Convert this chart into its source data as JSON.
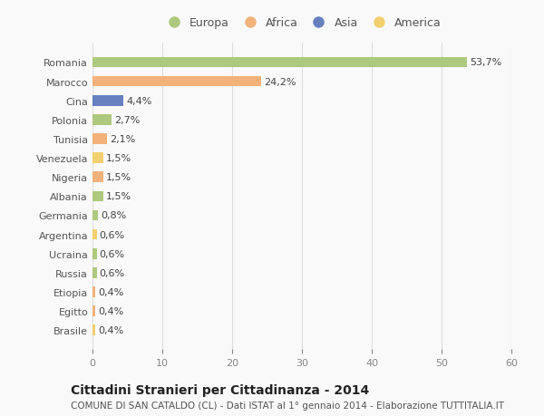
{
  "countries": [
    "Romania",
    "Marocco",
    "Cina",
    "Polonia",
    "Tunisia",
    "Venezuela",
    "Nigeria",
    "Albania",
    "Germania",
    "Argentina",
    "Ucraina",
    "Russia",
    "Etiopia",
    "Egitto",
    "Brasile"
  ],
  "values": [
    53.7,
    24.2,
    4.4,
    2.7,
    2.1,
    1.5,
    1.5,
    1.5,
    0.8,
    0.6,
    0.6,
    0.6,
    0.4,
    0.4,
    0.4
  ],
  "labels": [
    "53,7%",
    "24,2%",
    "4,4%",
    "2,7%",
    "2,1%",
    "1,5%",
    "1,5%",
    "1,5%",
    "0,8%",
    "0,6%",
    "0,6%",
    "0,6%",
    "0,4%",
    "0,4%",
    "0,4%"
  ],
  "colors": [
    "#adc97d",
    "#f2b27a",
    "#6680c0",
    "#adc97d",
    "#f2b27a",
    "#f2d070",
    "#f2b27a",
    "#adc97d",
    "#adc97d",
    "#f2d070",
    "#adc97d",
    "#adc97d",
    "#f2b27a",
    "#f2b27a",
    "#f2d070"
  ],
  "legend_labels": [
    "Europa",
    "Africa",
    "Asia",
    "America"
  ],
  "legend_colors": [
    "#adc97d",
    "#f2b27a",
    "#6680c0",
    "#f2d070"
  ],
  "xlim": [
    0,
    60
  ],
  "xticks": [
    0,
    10,
    20,
    30,
    40,
    50,
    60
  ],
  "title": "Cittadini Stranieri per Cittadinanza - 2014",
  "subtitle": "COMUNE DI SAN CATALDO (CL) - Dati ISTAT al 1° gennaio 2014 - Elaborazione TUTTITALIA.IT",
  "bg_color": "#f9f9f9",
  "bar_height": 0.55,
  "grid_color": "#dddddd",
  "title_fontsize": 10,
  "subtitle_fontsize": 7.5,
  "tick_fontsize": 8,
  "label_fontsize": 8,
  "legend_fontsize": 9
}
